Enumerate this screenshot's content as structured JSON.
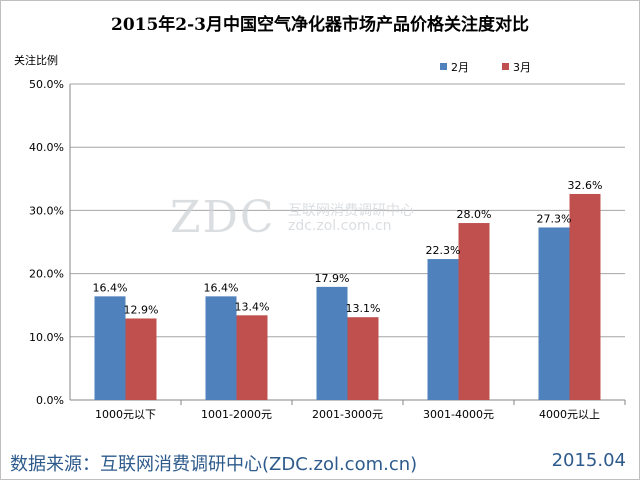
{
  "chart_data": {
    "type": "bar",
    "title": "2015年2-3月中国空气净化器市场产品价格关注度对比",
    "ylabel": "关注比例",
    "xlabel": "",
    "categories": [
      "1000元以下",
      "1001-2000元",
      "2001-3000元",
      "3001-4000元",
      "4000元以上"
    ],
    "series": [
      {
        "name": "2月",
        "values": [
          16.4,
          16.4,
          17.9,
          22.3,
          27.3
        ],
        "color": "#4f81bd"
      },
      {
        "name": "3月",
        "values": [
          12.9,
          13.4,
          13.1,
          28.0,
          32.6
        ],
        "color": "#c0504d"
      }
    ],
    "ylim": [
      0,
      50
    ],
    "yticks": [
      "0.0%",
      "10.0%",
      "20.0%",
      "30.0%",
      "40.0%",
      "50.0%"
    ],
    "data_labels": [
      [
        "16.4%",
        "16.4%",
        "17.9%",
        "22.3%",
        "27.3%"
      ],
      [
        "12.9%",
        "13.4%",
        "13.1%",
        "28.0%",
        "32.6%"
      ]
    ],
    "grid": true,
    "legend_position": "top-right"
  },
  "watermark": {
    "logo": "ZDC",
    "text_cn": "互联网消费调研中心",
    "url": "zdc.zol.com.cn"
  },
  "footer": {
    "source": "数据来源：互联网消费调研中心(ZDC.zol.com.cn)",
    "date": "2015.04"
  }
}
